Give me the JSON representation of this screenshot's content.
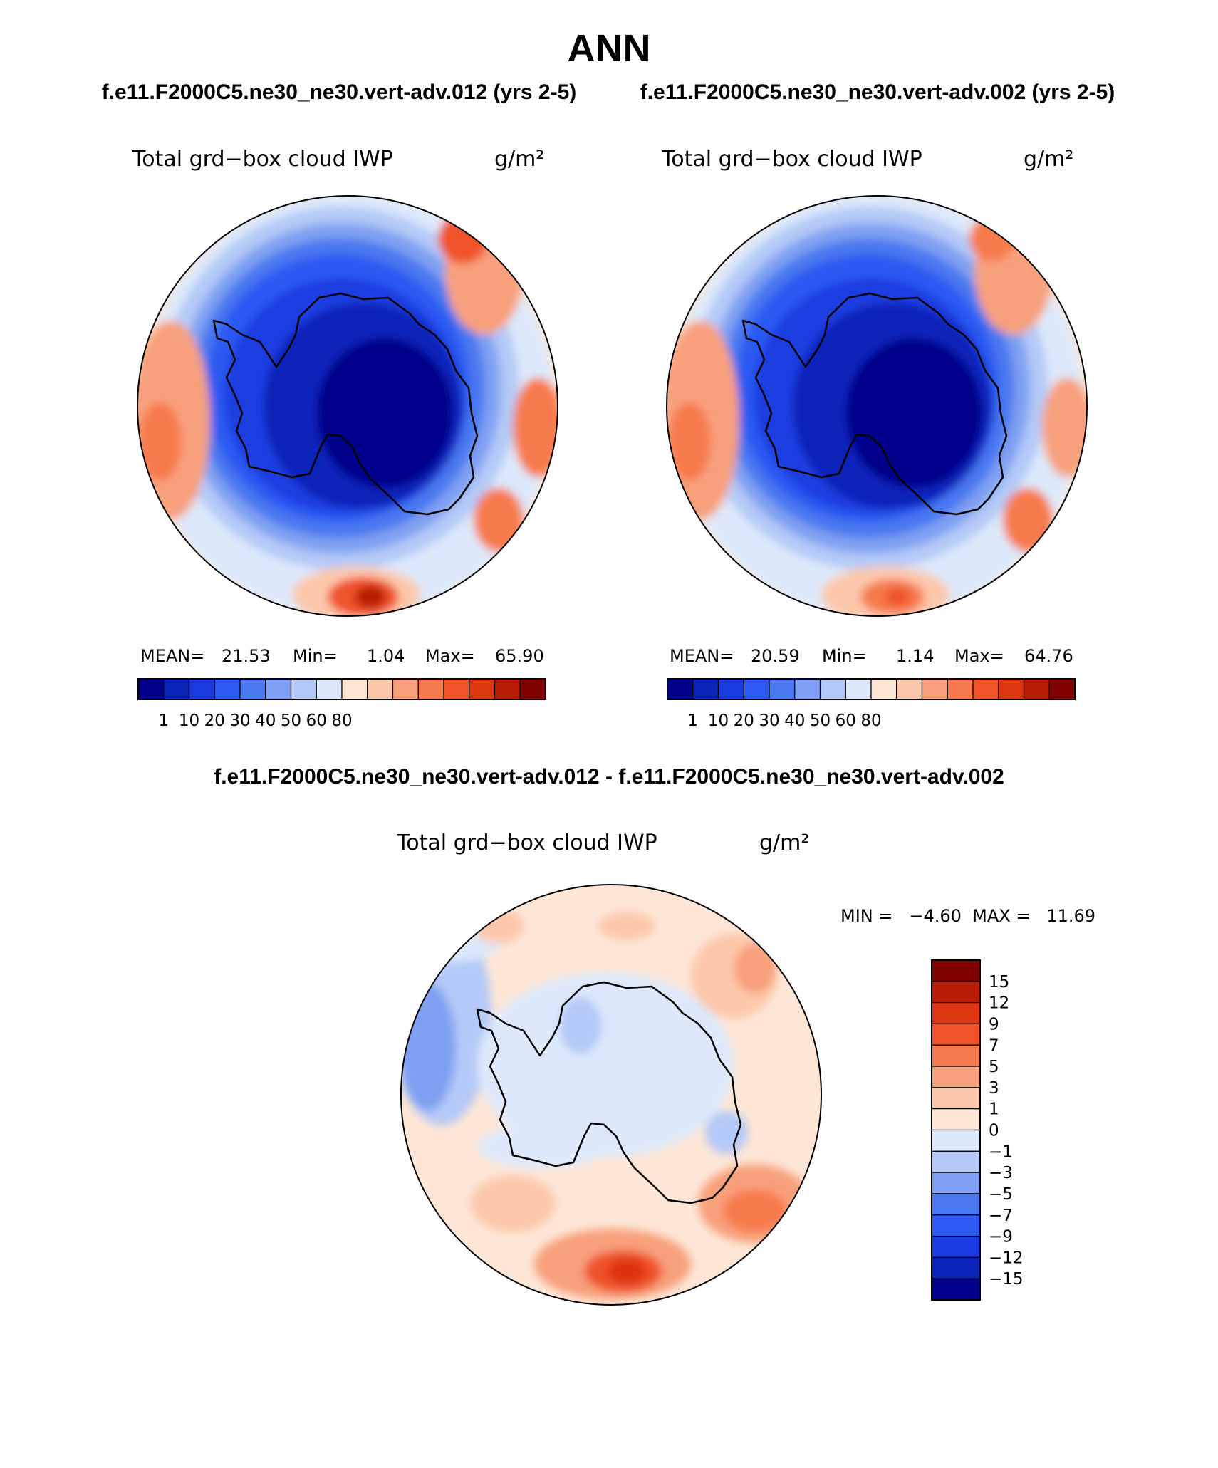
{
  "figure": {
    "title": "ANN",
    "case_label_a": "f.e11.F2000C5.ne30_ne30.vert-adv.012 (yrs 2-5)",
    "case_label_b": "f.e11.F2000C5.ne30_ne30.vert-adv.002 (yrs 2-5)",
    "diff_title": "f.e11.F2000C5.ne30_ne30.vert-adv.012 - f.e11.F2000C5.ne30_ne30.vert-adv.002"
  },
  "colors": {
    "abs_levels": [
      "#00008a",
      "#0a23b8",
      "#1a3ce0",
      "#2c5af2",
      "#4a78f0",
      "#7fa0f2",
      "#b4c9f7",
      "#dde9fb",
      "#fde6d6",
      "#fcc8ac",
      "#f8a07b",
      "#f77a4e",
      "#f0532a",
      "#dc3610",
      "#b81c05",
      "#800000"
    ],
    "diff_levels": [
      "#00008a",
      "#0a23b8",
      "#1a3ce0",
      "#2c5af2",
      "#4a78f0",
      "#7fa0f2",
      "#b4c9f7",
      "#dde9fb",
      "#fde6d6",
      "#fcc8ac",
      "#f8a07b",
      "#f77a4e",
      "#f0532a",
      "#dc3610",
      "#b81c05",
      "#800000"
    ]
  },
  "chart_data": [
    {
      "type": "heatmap",
      "projection": "south-polar-stereographic",
      "title": "Total grd−box cloud IWP",
      "units": "g/m²",
      "stats": {
        "mean_label": "MEAN=",
        "mean": "21.53",
        "min_label": "Min=",
        "min": "1.04",
        "max_label": "Max=",
        "max": "65.90"
      },
      "colorbar_ticks": [
        "1",
        "10",
        "20",
        "30",
        "40",
        "50",
        "60",
        "80"
      ],
      "mean": 21.53,
      "min": 1.04,
      "max": 65.9
    },
    {
      "type": "heatmap",
      "projection": "south-polar-stereographic",
      "title": "Total grd−box cloud IWP",
      "units": "g/m²",
      "stats": {
        "mean_label": "MEAN=",
        "mean": "20.59",
        "min_label": "Min=",
        "min": "1.14",
        "max_label": "Max=",
        "max": "64.76"
      },
      "colorbar_ticks": [
        "1",
        "10",
        "20",
        "30",
        "40",
        "50",
        "60",
        "80"
      ],
      "mean": 20.59,
      "min": 1.14,
      "max": 64.76
    },
    {
      "type": "heatmap",
      "projection": "south-polar-stereographic",
      "title": "Total grd−box cloud IWP",
      "units": "g/m²",
      "minmax_label": "MIN =   −4.60  MAX =   11.69",
      "min": -4.6,
      "max": 11.69,
      "colorbar_ticks": [
        "15",
        "12",
        "9",
        "7",
        "5",
        "3",
        "1",
        "0",
        "−1",
        "−3",
        "−5",
        "−7",
        "−9",
        "−12",
        "−15"
      ]
    }
  ]
}
